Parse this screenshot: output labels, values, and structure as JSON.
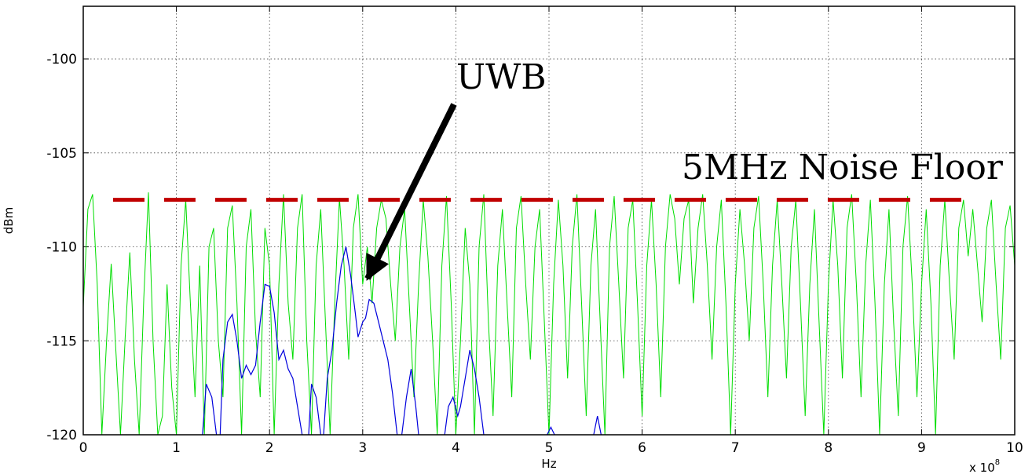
{
  "chart_data": {
    "type": "line",
    "xlabel": "Hz",
    "ylabel": "dBm",
    "x_exponent_label": "x 10",
    "x_exponent_power": "8",
    "xlim": [
      0,
      10
    ],
    "ylim": [
      -120,
      -97.2
    ],
    "xticks": [
      "0",
      "1",
      "2",
      "3",
      "4",
      "5",
      "6",
      "7",
      "8",
      "9",
      "10"
    ],
    "yticks": [
      "-100",
      "-105",
      "-110",
      "-115",
      "-120"
    ],
    "grid": true,
    "annotations": {
      "uwb_label": "UWB",
      "noise_floor_label": "5MHz Noise Floor"
    },
    "noise_floor": {
      "value": -107.5,
      "x_start": 0.32,
      "x_end": 9.5,
      "color": "#c00000"
    },
    "series": [
      {
        "color": "#00dd00",
        "points": [
          [
            0,
            -113.2
          ],
          [
            0.05,
            -108.0
          ],
          [
            0.1,
            -107.2
          ],
          [
            0.15,
            -112.0
          ],
          [
            0.2,
            -120
          ],
          [
            0.25,
            -115.0
          ],
          [
            0.3,
            -110.9
          ],
          [
            0.35,
            -115.5
          ],
          [
            0.4,
            -120
          ],
          [
            0.45,
            -114.8
          ],
          [
            0.5,
            -110.3
          ],
          [
            0.55,
            -116.0
          ],
          [
            0.6,
            -120
          ],
          [
            0.65,
            -112.7
          ],
          [
            0.7,
            -107.1
          ],
          [
            0.75,
            -115.0
          ],
          [
            0.8,
            -120
          ],
          [
            0.85,
            -119.0
          ],
          [
            0.9,
            -112.0
          ],
          [
            0.95,
            -117.5
          ],
          [
            1.0,
            -120
          ],
          [
            1.05,
            -111.0
          ],
          [
            1.1,
            -107.5
          ],
          [
            1.15,
            -113.0
          ],
          [
            1.2,
            -118.0
          ],
          [
            1.25,
            -111.0
          ],
          [
            1.3,
            -120
          ],
          [
            1.35,
            -110.0
          ],
          [
            1.4,
            -109.0
          ],
          [
            1.45,
            -115.0
          ],
          [
            1.5,
            -118.0
          ],
          [
            1.55,
            -109.0
          ],
          [
            1.6,
            -107.8
          ],
          [
            1.65,
            -113.0
          ],
          [
            1.7,
            -120
          ],
          [
            1.75,
            -110.0
          ],
          [
            1.8,
            -108.0
          ],
          [
            1.85,
            -114.5
          ],
          [
            1.9,
            -118.0
          ],
          [
            1.95,
            -109.0
          ],
          [
            2.0,
            -111.0
          ],
          [
            2.05,
            -120
          ],
          [
            2.1,
            -112.0
          ],
          [
            2.15,
            -107.2
          ],
          [
            2.2,
            -113.0
          ],
          [
            2.25,
            -116.0
          ],
          [
            2.3,
            -109.0
          ],
          [
            2.35,
            -107.2
          ],
          [
            2.4,
            -115.0
          ],
          [
            2.45,
            -120
          ],
          [
            2.5,
            -111.0
          ],
          [
            2.55,
            -108.0
          ],
          [
            2.6,
            -114.0
          ],
          [
            2.65,
            -120
          ],
          [
            2.7,
            -113.0
          ],
          [
            2.75,
            -107.4
          ],
          [
            2.8,
            -111.0
          ],
          [
            2.85,
            -116.0
          ],
          [
            2.9,
            -109.0
          ],
          [
            2.95,
            -107.2
          ],
          [
            3.0,
            -112.0
          ],
          [
            3.05,
            -110.0
          ],
          [
            3.1,
            -113.0
          ],
          [
            3.15,
            -109.0
          ],
          [
            3.2,
            -107.5
          ],
          [
            3.25,
            -108.5
          ],
          [
            3.3,
            -112.0
          ],
          [
            3.35,
            -115.0
          ],
          [
            3.4,
            -110.0
          ],
          [
            3.45,
            -108.0
          ],
          [
            3.5,
            -113.0
          ],
          [
            3.55,
            -118.0
          ],
          [
            3.6,
            -112.0
          ],
          [
            3.65,
            -107.5
          ],
          [
            3.7,
            -110.5
          ],
          [
            3.75,
            -115.0
          ],
          [
            3.8,
            -120
          ],
          [
            3.85,
            -111.0
          ],
          [
            3.9,
            -107.3
          ],
          [
            3.95,
            -113.0
          ],
          [
            4.0,
            -120
          ],
          [
            4.05,
            -115.0
          ],
          [
            4.1,
            -109.0
          ],
          [
            4.15,
            -112.0
          ],
          [
            4.2,
            -120
          ],
          [
            4.25,
            -110.0
          ],
          [
            4.3,
            -107.2
          ],
          [
            4.35,
            -114.0
          ],
          [
            4.4,
            -119.0
          ],
          [
            4.45,
            -111.0
          ],
          [
            4.5,
            -108.0
          ],
          [
            4.55,
            -113.0
          ],
          [
            4.6,
            -118.0
          ],
          [
            4.65,
            -109.0
          ],
          [
            4.7,
            -107.3
          ],
          [
            4.75,
            -112.0
          ],
          [
            4.8,
            -116.0
          ],
          [
            4.85,
            -110.0
          ],
          [
            4.9,
            -108.0
          ],
          [
            4.95,
            -114.0
          ],
          [
            5.0,
            -120
          ],
          [
            5.05,
            -112.0
          ],
          [
            5.1,
            -107.5
          ],
          [
            5.15,
            -111.0
          ],
          [
            5.2,
            -117.0
          ],
          [
            5.25,
            -110.0
          ],
          [
            5.3,
            -107.2
          ],
          [
            5.35,
            -113.0
          ],
          [
            5.4,
            -119.0
          ],
          [
            5.45,
            -111.0
          ],
          [
            5.5,
            -108.0
          ],
          [
            5.55,
            -114.0
          ],
          [
            5.6,
            -120
          ],
          [
            5.65,
            -110.0
          ],
          [
            5.7,
            -107.3
          ],
          [
            5.75,
            -112.0
          ],
          [
            5.8,
            -117.0
          ],
          [
            5.85,
            -109.0
          ],
          [
            5.9,
            -107.5
          ],
          [
            5.95,
            -113.0
          ],
          [
            6.0,
            -119.0
          ],
          [
            6.05,
            -111.0
          ],
          [
            6.1,
            -107.5
          ],
          [
            6.15,
            -112.0
          ],
          [
            6.2,
            -118.0
          ],
          [
            6.25,
            -110.0
          ],
          [
            6.3,
            -107.2
          ],
          [
            6.35,
            -108.5
          ],
          [
            6.4,
            -112.0
          ],
          [
            6.45,
            -108.5
          ],
          [
            6.5,
            -107.5
          ],
          [
            6.55,
            -113.0
          ],
          [
            6.6,
            -109.0
          ],
          [
            6.65,
            -107.2
          ],
          [
            6.7,
            -111.0
          ],
          [
            6.75,
            -116.0
          ],
          [
            6.8,
            -110.0
          ],
          [
            6.85,
            -107.5
          ],
          [
            6.9,
            -113.0
          ],
          [
            6.95,
            -120
          ],
          [
            7.0,
            -112.0
          ],
          [
            7.05,
            -108.0
          ],
          [
            7.1,
            -111.0
          ],
          [
            7.15,
            -115.0
          ],
          [
            7.2,
            -109.0
          ],
          [
            7.25,
            -107.3
          ],
          [
            7.3,
            -112.0
          ],
          [
            7.35,
            -118.0
          ],
          [
            7.4,
            -111.0
          ],
          [
            7.45,
            -107.5
          ],
          [
            7.5,
            -112.0
          ],
          [
            7.55,
            -117.0
          ],
          [
            7.6,
            -110.0
          ],
          [
            7.65,
            -107.5
          ],
          [
            7.7,
            -113.0
          ],
          [
            7.75,
            -119.0
          ],
          [
            7.8,
            -112.0
          ],
          [
            7.85,
            -108.0
          ],
          [
            7.9,
            -114.0
          ],
          [
            7.95,
            -120
          ],
          [
            8.0,
            -112.0
          ],
          [
            8.05,
            -107.5
          ],
          [
            8.1,
            -111.0
          ],
          [
            8.15,
            -117.0
          ],
          [
            8.2,
            -109.0
          ],
          [
            8.25,
            -107.2
          ],
          [
            8.3,
            -112.0
          ],
          [
            8.35,
            -118.0
          ],
          [
            8.4,
            -111.0
          ],
          [
            8.45,
            -107.5
          ],
          [
            8.5,
            -113.0
          ],
          [
            8.55,
            -120
          ],
          [
            8.6,
            -112.0
          ],
          [
            8.65,
            -108.0
          ],
          [
            8.7,
            -114.0
          ],
          [
            8.75,
            -119.0
          ],
          [
            8.8,
            -110.0
          ],
          [
            8.85,
            -107.3
          ],
          [
            8.9,
            -112.0
          ],
          [
            8.95,
            -118.0
          ],
          [
            9.0,
            -112.0
          ],
          [
            9.05,
            -108.0
          ],
          [
            9.1,
            -113.0
          ],
          [
            9.15,
            -120
          ],
          [
            9.2,
            -111.0
          ],
          [
            9.25,
            -107.5
          ],
          [
            9.3,
            -112.0
          ],
          [
            9.35,
            -116.0
          ],
          [
            9.4,
            -109.0
          ],
          [
            9.45,
            -107.5
          ],
          [
            9.5,
            -110.5
          ],
          [
            9.55,
            -108.0
          ],
          [
            9.6,
            -111.0
          ],
          [
            9.65,
            -114.0
          ],
          [
            9.7,
            -109.0
          ],
          [
            9.75,
            -107.5
          ],
          [
            9.8,
            -112.0
          ],
          [
            9.85,
            -116.0
          ],
          [
            9.9,
            -109.0
          ],
          [
            9.95,
            -107.8
          ],
          [
            10.0,
            -111.0
          ]
        ]
      },
      {
        "color": "#0000dd",
        "segments": [
          [
            [
              1.28,
              -120
            ],
            [
              1.32,
              -117.3
            ],
            [
              1.38,
              -118.0
            ],
            [
              1.43,
              -120
            ]
          ],
          [
            [
              1.47,
              -120
            ],
            [
              1.5,
              -116.0
            ],
            [
              1.55,
              -114.0
            ],
            [
              1.6,
              -113.6
            ],
            [
              1.65,
              -115.0
            ],
            [
              1.7,
              -117.0
            ],
            [
              1.75,
              -116.3
            ],
            [
              1.8,
              -116.8
            ],
            [
              1.85,
              -116.3
            ],
            [
              1.9,
              -114.0
            ],
            [
              1.95,
              -112.0
            ],
            [
              2.0,
              -112.1
            ],
            [
              2.05,
              -113.5
            ],
            [
              2.1,
              -116.0
            ],
            [
              2.15,
              -115.5
            ],
            [
              2.2,
              -116.5
            ],
            [
              2.25,
              -117.0
            ],
            [
              2.3,
              -118.5
            ],
            [
              2.35,
              -120
            ]
          ],
          [
            [
              2.42,
              -120
            ],
            [
              2.45,
              -117.3
            ],
            [
              2.5,
              -118.0
            ],
            [
              2.55,
              -120
            ]
          ],
          [
            [
              2.58,
              -120
            ],
            [
              2.62,
              -117.0
            ],
            [
              2.67,
              -115.5
            ],
            [
              2.72,
              -113.0
            ],
            [
              2.77,
              -111.0
            ],
            [
              2.82,
              -110.0
            ],
            [
              2.87,
              -111.5
            ],
            [
              2.92,
              -113.5
            ],
            [
              2.95,
              -114.8
            ],
            [
              3.0,
              -114.0
            ],
            [
              3.03,
              -113.8
            ],
            [
              3.07,
              -112.8
            ],
            [
              3.12,
              -113.0
            ],
            [
              3.17,
              -114.0
            ],
            [
              3.22,
              -115.0
            ],
            [
              3.27,
              -116.0
            ],
            [
              3.32,
              -117.8
            ],
            [
              3.37,
              -120
            ]
          ],
          [
            [
              3.42,
              -120
            ],
            [
              3.47,
              -118.0
            ],
            [
              3.52,
              -116.5
            ],
            [
              3.57,
              -118.5
            ],
            [
              3.6,
              -120
            ]
          ],
          [
            [
              3.88,
              -120
            ],
            [
              3.92,
              -118.5
            ],
            [
              3.97,
              -118.0
            ],
            [
              4.02,
              -119.0
            ],
            [
              4.05,
              -118.5
            ],
            [
              4.1,
              -117.0
            ],
            [
              4.15,
              -115.5
            ],
            [
              4.2,
              -116.5
            ],
            [
              4.25,
              -118.0
            ],
            [
              4.3,
              -120
            ]
          ],
          [
            [
              4.98,
              -120
            ],
            [
              5.02,
              -119.6
            ],
            [
              5.06,
              -120
            ]
          ],
          [
            [
              5.48,
              -120
            ],
            [
              5.52,
              -119.0
            ],
            [
              5.56,
              -120
            ]
          ]
        ]
      }
    ]
  }
}
